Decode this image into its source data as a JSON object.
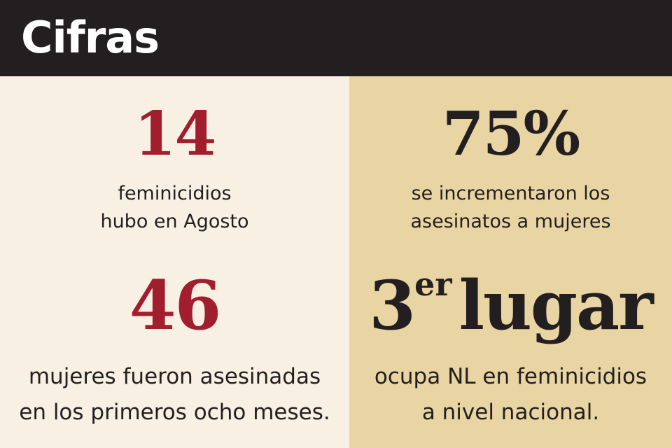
{
  "header": {
    "title": "Cifras"
  },
  "stats": [
    {
      "value": "14",
      "lines": [
        "feminicidios",
        "hubo en Agosto"
      ]
    },
    {
      "value": "75%",
      "lines": [
        "se incrementaron los",
        "asesinatos a mujeres"
      ]
    },
    {
      "value": "46",
      "lines": [
        "mujeres fueron asesinadas",
        "en los primeros ocho meses."
      ]
    },
    {
      "value": "3",
      "superscript": "er",
      "word": "lugar",
      "lines": [
        "ocupa NL en feminicidios",
        "a nivel nacional."
      ]
    }
  ],
  "colors": {
    "header_bg": "#231f20",
    "left_bg": "#f8f1e3",
    "right_bg": "#e9d5a3",
    "accent_red": "#a01e2d",
    "text_dark": "#231f20"
  }
}
